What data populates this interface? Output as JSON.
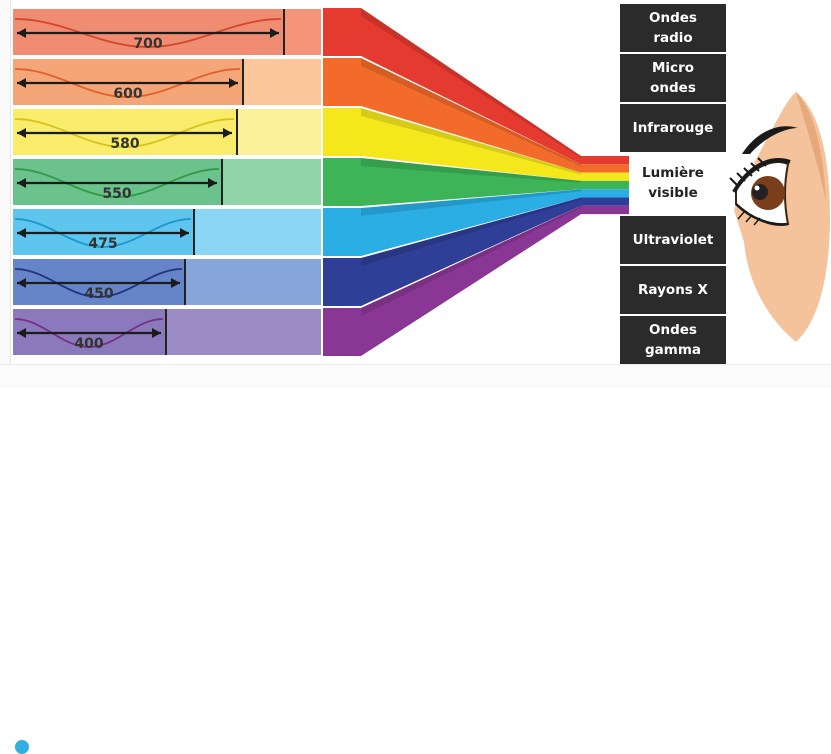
{
  "bands": [
    {
      "wavelength": "700",
      "light": "#f4957b",
      "dark": "#f08c72",
      "swatch": "#e53a2f",
      "cone": "#e53a2f",
      "wave": "#d2462a",
      "extent": 0.87
    },
    {
      "wavelength": "600",
      "light": "#fbc79a",
      "dark": "#f5a678",
      "swatch": "#f26b2a",
      "cone": "#f26b2a",
      "wave": "#e0622a",
      "extent": 0.74
    },
    {
      "wavelength": "580",
      "light": "#fbf19a",
      "dark": "#f8ec6a",
      "swatch": "#f4e81c",
      "cone": "#f4e81c",
      "wave": "#d9c31a",
      "extent": 0.72
    },
    {
      "wavelength": "550",
      "light": "#8fd3a6",
      "dark": "#6cc28c",
      "swatch": "#3db457",
      "cone": "#3db457",
      "wave": "#2f9a45",
      "extent": 0.67
    },
    {
      "wavelength": "475",
      "light": "#8cd6f5",
      "dark": "#5ec5ef",
      "swatch": "#2aaee4",
      "cone": "#2aaee4",
      "wave": "#1e95cc",
      "extent": 0.58
    },
    {
      "wavelength": "450",
      "light": "#86a6da",
      "dark": "#6685c9",
      "swatch": "#2f3e96",
      "cone": "#2f3e96",
      "wave": "#243381",
      "extent": 0.55
    },
    {
      "wavelength": "400",
      "light": "#9b8cc6",
      "dark": "#8a79bb",
      "swatch": "#8a3694",
      "cone": "#8a3694",
      "wave": "#7a2f86",
      "extent": 0.49
    }
  ],
  "spectrum": [
    {
      "label": "Ondes\nradio",
      "style": "dark"
    },
    {
      "label": "Micro\nondes",
      "style": "dark"
    },
    {
      "label": "Infrarouge",
      "style": "dark"
    },
    {
      "label": "Lumière\nvisible",
      "style": "light"
    },
    {
      "label": "Ultraviolet",
      "style": "dark"
    },
    {
      "label": "Rayons X",
      "style": "dark"
    },
    {
      "label": "Ondes\ngamma",
      "style": "dark"
    }
  ],
  "colors": {
    "box": "#2b2b2b",
    "skin": "#f4c29b",
    "skin_shade": "#e6a97c",
    "iris": "#7a3e1a",
    "pupil": "#222222",
    "lash": "#1a1a1a"
  }
}
